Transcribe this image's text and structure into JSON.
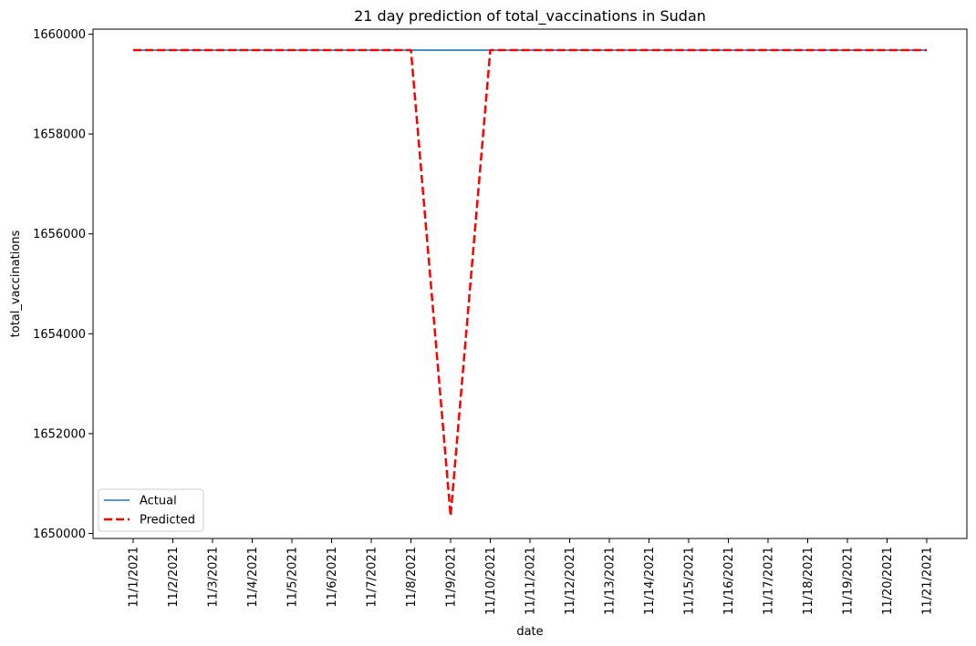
{
  "chart_data": {
    "type": "line",
    "title": "21 day prediction of total_vaccinations in Sudan",
    "xlabel": "date",
    "ylabel": "total_vaccinations",
    "categories": [
      "11/1/2021",
      "11/2/2021",
      "11/3/2021",
      "11/4/2021",
      "11/5/2021",
      "11/6/2021",
      "11/7/2021",
      "11/8/2021",
      "11/9/2021",
      "11/10/2021",
      "11/11/2021",
      "11/12/2021",
      "11/13/2021",
      "11/14/2021",
      "11/15/2021",
      "11/16/2021",
      "11/17/2021",
      "11/18/2021",
      "11/19/2021",
      "11/20/2021",
      "11/21/2021"
    ],
    "yticks": [
      1650000,
      1652000,
      1654000,
      1656000,
      1658000,
      1660000
    ],
    "ylim": [
      1649900,
      1660100
    ],
    "grid": false,
    "legend_position": "lower-left",
    "series": [
      {
        "name": "Actual",
        "color": "#1f77b4",
        "style": "solid",
        "values": [
          1659680,
          1659680,
          1659680,
          1659680,
          1659680,
          1659680,
          1659680,
          1659680,
          1659680,
          1659680,
          1659680,
          1659680,
          1659680,
          1659680,
          1659680,
          1659680,
          1659680,
          1659680,
          1659680,
          1659680,
          1659680
        ]
      },
      {
        "name": "Predicted",
        "color": "#ff0000",
        "style": "dashed",
        "values": [
          1659680,
          1659680,
          1659680,
          1659680,
          1659680,
          1659680,
          1659680,
          1659680,
          1650350,
          1659680,
          1659680,
          1659680,
          1659680,
          1659680,
          1659680,
          1659680,
          1659680,
          1659680,
          1659680,
          1659680,
          1659680
        ]
      }
    ]
  }
}
